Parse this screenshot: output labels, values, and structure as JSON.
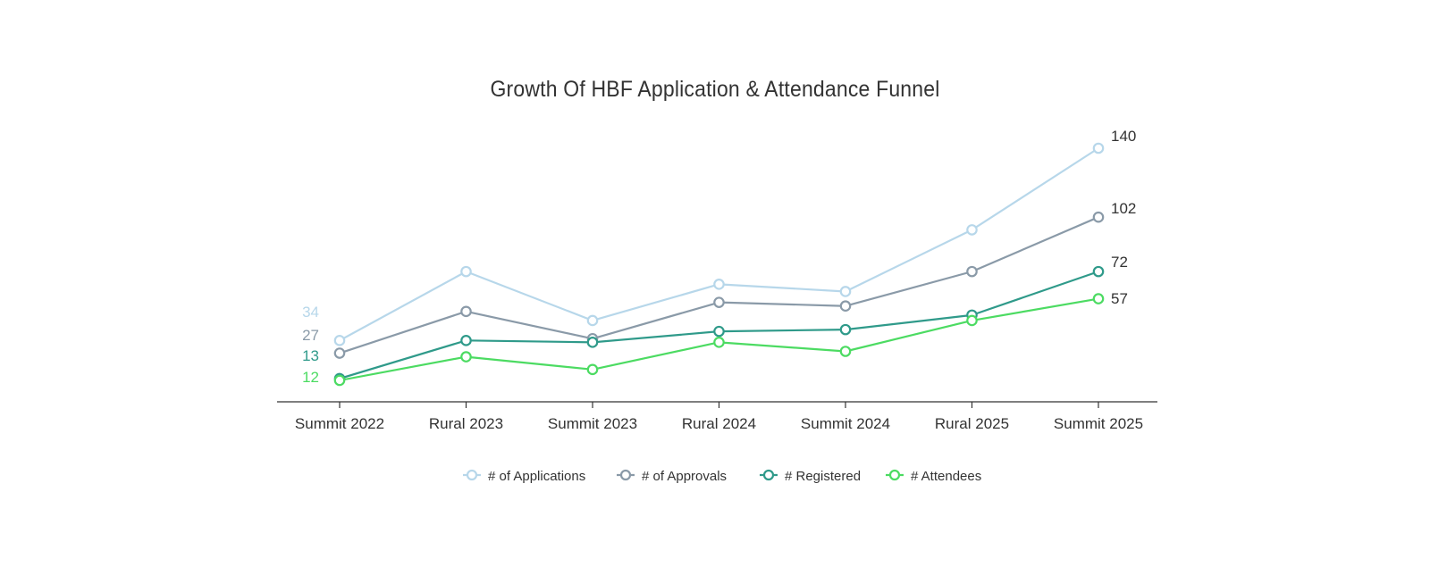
{
  "chart_data": {
    "type": "line",
    "title": "Growth Of HBF Application & Attendance Funnel",
    "xlabel": "",
    "ylabel": "",
    "categories": [
      "Summit 2022",
      "Rural 2023",
      "Summit 2023",
      "Rural 2024",
      "Summit 2024",
      "Rural 2025",
      "Summit 2025"
    ],
    "ylim": [
      0,
      150
    ],
    "grid": false,
    "legend_position": "bottom",
    "series": [
      {
        "name": "# of Applications",
        "color": "#b7d7ea",
        "values": [
          34,
          72,
          45,
          65,
          61,
          95,
          140
        ],
        "first_label": "34",
        "last_label": "140"
      },
      {
        "name": "# of Approvals",
        "color": "#8a9aa8",
        "values": [
          27,
          50,
          35,
          55,
          53,
          72,
          102
        ],
        "first_label": "27",
        "last_label": "102"
      },
      {
        "name": "# Registered",
        "color": "#2f9a8a",
        "values": [
          13,
          34,
          33,
          39,
          40,
          48,
          72
        ],
        "first_label": "13",
        "last_label": "72"
      },
      {
        "name": "# Attendees",
        "color": "#4cdb62",
        "values": [
          12,
          25,
          18,
          33,
          28,
          45,
          57
        ],
        "first_label": "12",
        "last_label": "57"
      }
    ]
  }
}
